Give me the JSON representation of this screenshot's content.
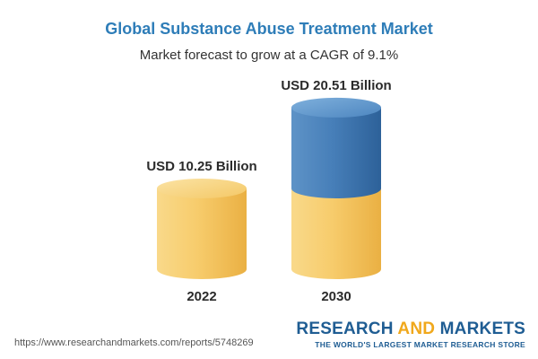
{
  "header": {
    "title": "Global Substance Abuse Treatment Market",
    "subtitle": "Market forecast to grow at a CAGR of 9.1%"
  },
  "chart_data": {
    "type": "bar",
    "categories": [
      "2022",
      "2030"
    ],
    "values": [
      10.25,
      20.51
    ],
    "value_labels": [
      "USD 10.25 Billion",
      "USD 20.51 Billion"
    ],
    "unit": "USD Billion",
    "title": "Global Substance Abuse Treatment Market",
    "subtitle": "Market forecast to grow at a CAGR of 9.1%",
    "xlabel": "",
    "ylabel": "",
    "cagr_percent": 9.1,
    "grid": false,
    "legend": "none",
    "colors": {
      "base": "#f5c45a",
      "base_dark": "#e8ab3a",
      "growth": "#3f78b3",
      "growth_dark": "#2b5f97"
    }
  },
  "footer": {
    "url": "https://www.researchandmarkets.com/reports/5748269",
    "brand_part1": "RESEARCH ",
    "brand_part2": "AND",
    "brand_part3": " MARKETS",
    "brand_tagline": "THE WORLD'S LARGEST MARKET RESEARCH STORE"
  }
}
